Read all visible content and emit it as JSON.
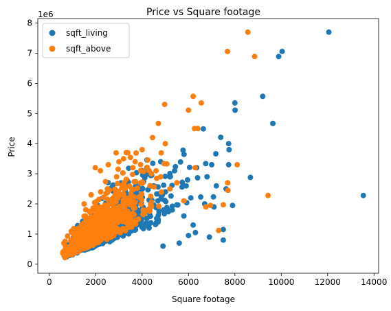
{
  "chart_data": {
    "type": "scatter",
    "title": "Price vs Square footage",
    "xlabel": "Square footage",
    "ylabel": "Price",
    "y_offset_label": "1e6",
    "xlim": [
      -500,
      14200
    ],
    "ylim": [
      -0.3,
      8.15
    ],
    "xticks": [
      0,
      2000,
      4000,
      6000,
      8000,
      10000,
      12000,
      14000
    ],
    "xtick_labels": [
      "0",
      "2000",
      "4000",
      "6000",
      "8000",
      "10000",
      "12000",
      "14000"
    ],
    "yticks": [
      0,
      1,
      2,
      3,
      4,
      5,
      6,
      7,
      8
    ],
    "ytick_labels": [
      "0",
      "1",
      "2",
      "3",
      "4",
      "5",
      "6",
      "7",
      "8"
    ],
    "grid": false,
    "legend_position": "top-left",
    "series": [
      {
        "name": "sqft_living",
        "color": "#1f77b4",
        "points": [
          [
            12050,
            7.7
          ],
          [
            10040,
            7.06
          ],
          [
            9890,
            6.89
          ],
          [
            9200,
            5.57
          ],
          [
            8000,
            5.35
          ],
          [
            8010,
            5.11
          ],
          [
            9640,
            4.67
          ],
          [
            6640,
            4.49
          ],
          [
            7390,
            4.21
          ],
          [
            7730,
            4.0
          ],
          [
            7750,
            3.8
          ],
          [
            8670,
            2.88
          ],
          [
            13540,
            2.28
          ],
          [
            6350,
            3.2
          ],
          [
            7000,
            3.3
          ],
          [
            7730,
            3.3
          ],
          [
            5400,
            3.1
          ],
          [
            6800,
            2.9
          ],
          [
            7200,
            2.6
          ],
          [
            7620,
            2.5
          ],
          [
            6700,
            2.0
          ],
          [
            7100,
            1.9
          ],
          [
            7900,
            1.95
          ],
          [
            7500,
            1.15
          ],
          [
            6900,
            0.9
          ],
          [
            7500,
            0.8
          ],
          [
            6200,
            1.3
          ],
          [
            5800,
            1.6
          ],
          [
            5000,
            2.4
          ],
          [
            4500,
            2.6
          ],
          [
            5900,
            2.6
          ],
          [
            6100,
            2.2
          ],
          [
            5300,
            1.8
          ],
          [
            4800,
            3.4
          ],
          [
            4200,
            3.2
          ],
          [
            6300,
            1.05
          ],
          [
            6000,
            0.95
          ],
          [
            5600,
            0.7
          ],
          [
            4900,
            0.6
          ],
          [
            5200,
            2.9
          ],
          [
            4300,
            1.2
          ],
          [
            3800,
            2.2
          ],
          [
            3500,
            1.7
          ],
          [
            3000,
            1.3
          ],
          [
            2500,
            0.8
          ]
        ]
      },
      {
        "name": "sqft_above",
        "color": "#ff7f0e",
        "points": [
          [
            8560,
            7.7
          ],
          [
            7680,
            7.06
          ],
          [
            8850,
            6.89
          ],
          [
            6200,
            5.57
          ],
          [
            6550,
            5.35
          ],
          [
            4970,
            5.3
          ],
          [
            6000,
            5.11
          ],
          [
            4700,
            4.67
          ],
          [
            6260,
            4.5
          ],
          [
            6400,
            4.5
          ],
          [
            5000,
            4.0
          ],
          [
            4450,
            4.2
          ],
          [
            3380,
            3.7
          ],
          [
            3200,
            3.5
          ],
          [
            1980,
            3.2
          ],
          [
            2540,
            3.3
          ],
          [
            4000,
            3.8
          ],
          [
            6290,
            3.2
          ],
          [
            8100,
            3.3
          ],
          [
            7690,
            2.7
          ],
          [
            7700,
            2.45
          ],
          [
            9430,
            2.28
          ],
          [
            7500,
            1.97
          ],
          [
            7300,
            1.12
          ],
          [
            6750,
            1.9
          ],
          [
            6950,
            1.95
          ],
          [
            5800,
            2.1
          ],
          [
            5200,
            2.5
          ],
          [
            5500,
            2.7
          ],
          [
            4800,
            2.9
          ],
          [
            4600,
            3.1
          ],
          [
            4400,
            3.0
          ],
          [
            3700,
            3.4
          ],
          [
            3600,
            3.2
          ],
          [
            2900,
            2.9
          ],
          [
            2500,
            2.5
          ],
          [
            1500,
            2.0
          ],
          [
            1800,
            2.3
          ],
          [
            2200,
            3.1
          ],
          [
            3000,
            3.4
          ]
        ]
      }
    ]
  }
}
